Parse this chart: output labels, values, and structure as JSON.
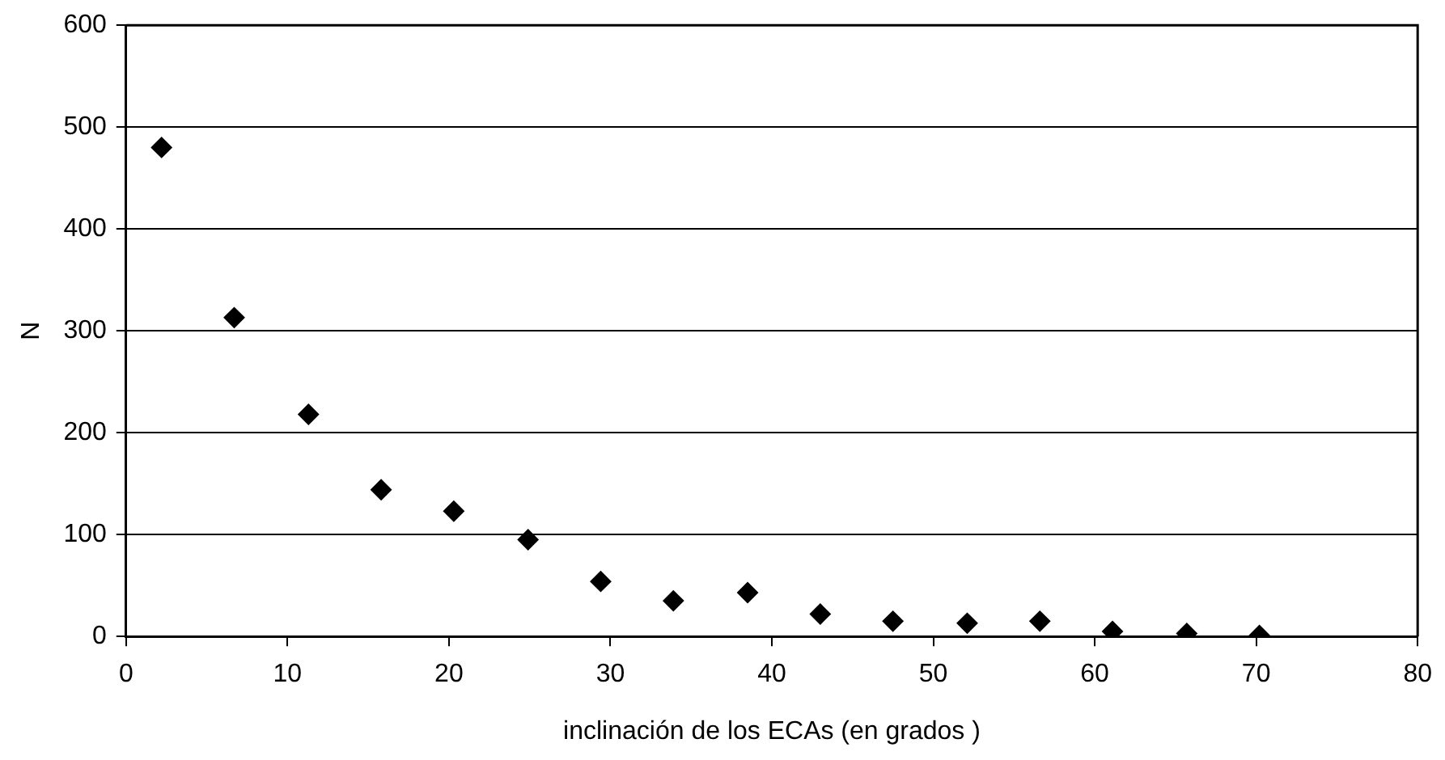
{
  "chart_data": {
    "type": "scatter",
    "xlabel": "inclinación de los ECAs (en grados )",
    "ylabel": "N",
    "x": [
      2.2,
      6.7,
      11.3,
      15.8,
      20.3,
      24.9,
      29.4,
      33.9,
      38.5,
      43,
      47.5,
      52.1,
      56.6,
      61.1,
      65.7,
      70.2
    ],
    "values": [
      480,
      313,
      218,
      144,
      123,
      95,
      54,
      35,
      43,
      22,
      15,
      13,
      15,
      5,
      3,
      1
    ],
    "color": "#000000",
    "marker": "diamond",
    "xlim": [
      0,
      80
    ],
    "xticks": [
      0,
      10,
      20,
      30,
      40,
      50,
      60,
      70,
      80
    ],
    "ylim": [
      0,
      600
    ],
    "yticks": [
      0,
      100,
      200,
      300,
      400,
      500,
      600
    ],
    "grid": "y",
    "legend": false
  }
}
